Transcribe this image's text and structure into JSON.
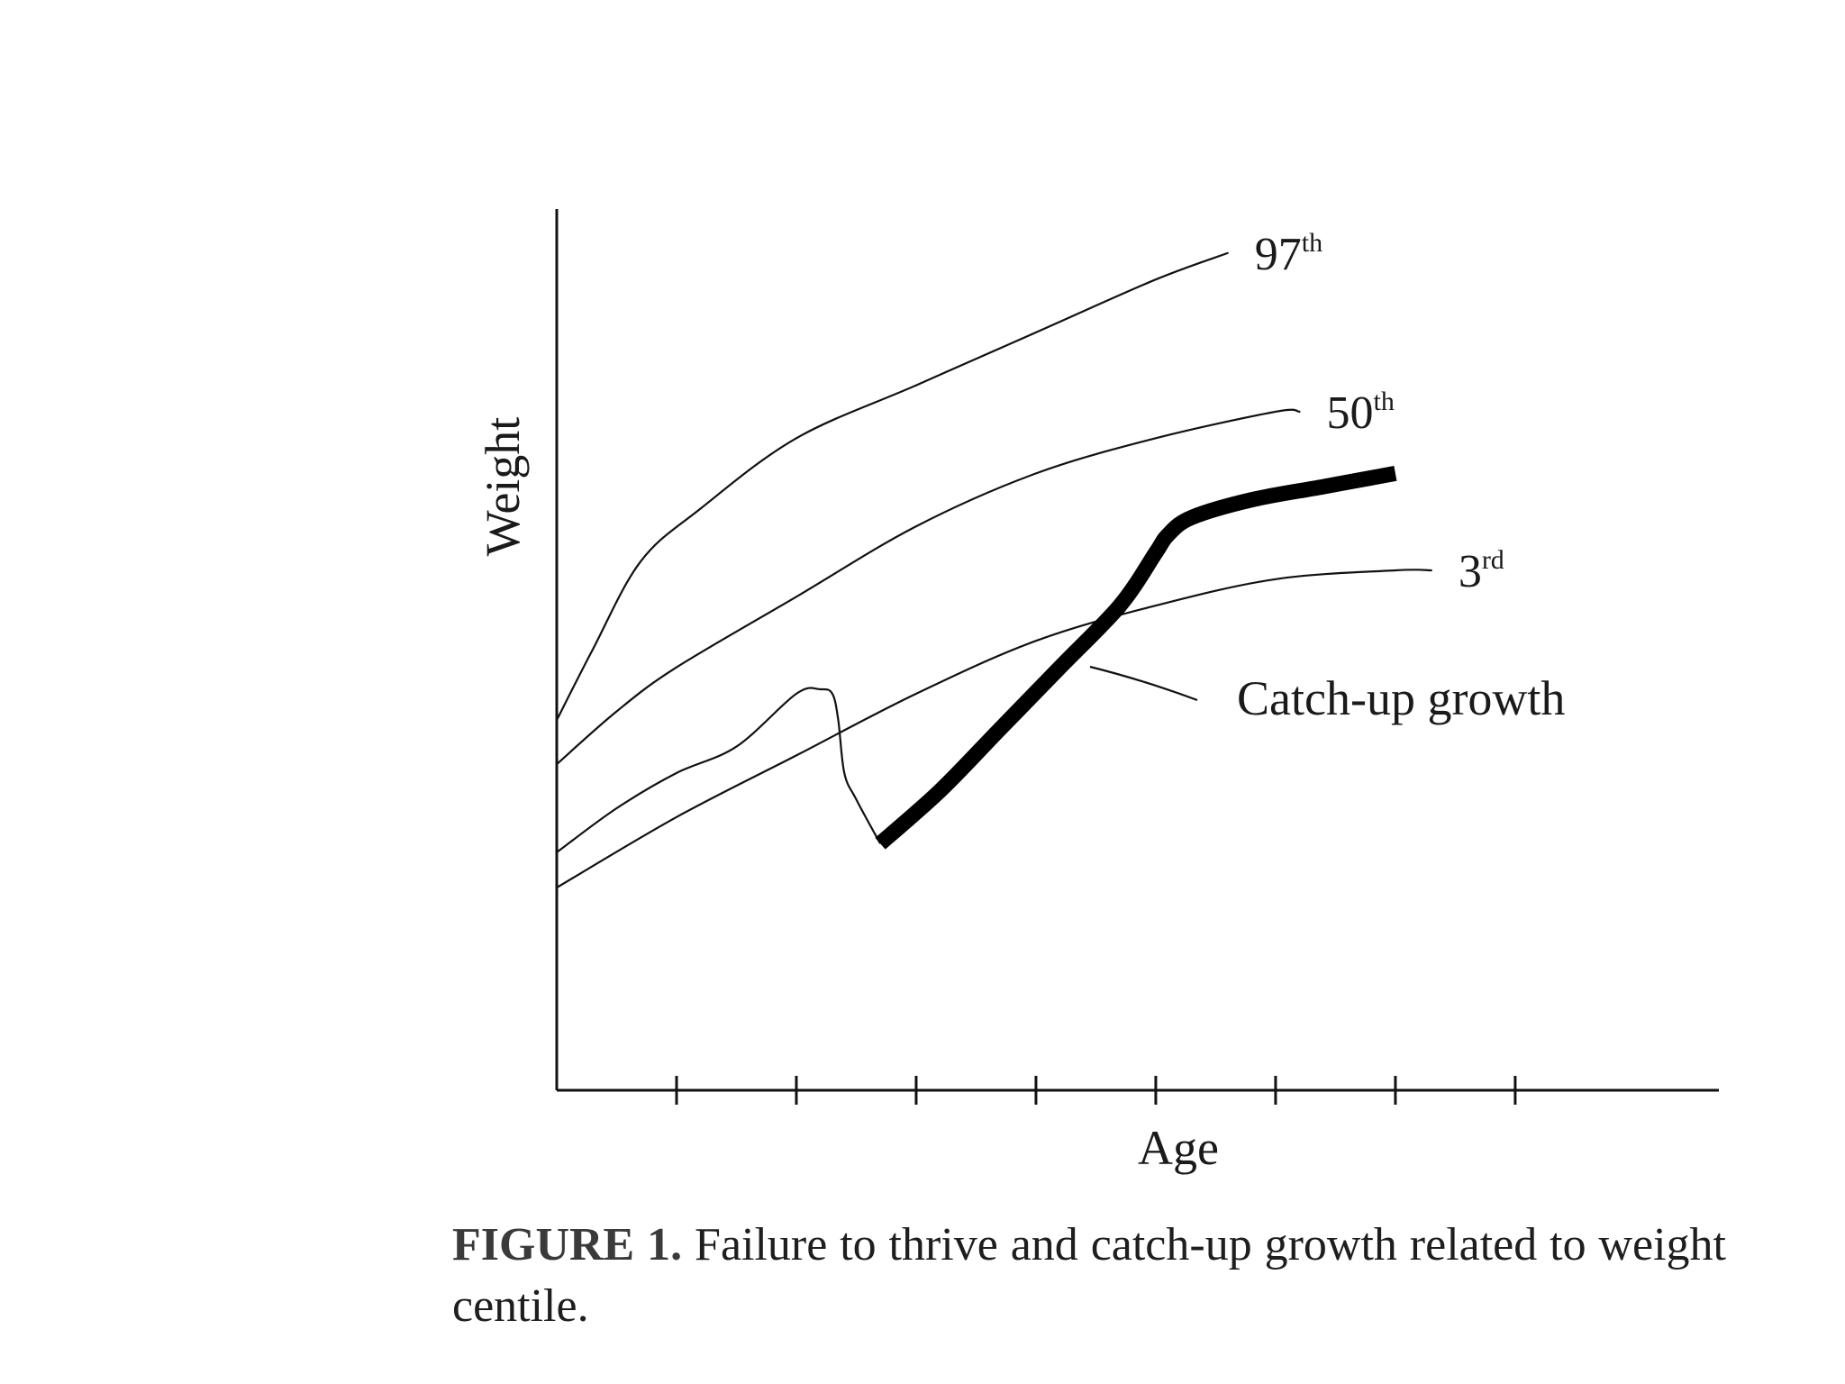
{
  "chart_data": {
    "type": "line",
    "xlabel": "Age",
    "ylabel": "Weight",
    "xlim": [
      0,
      9.7
    ],
    "ylim": [
      0,
      10
    ],
    "x_ticks": [
      1,
      2,
      3,
      4,
      5,
      6,
      7,
      8
    ],
    "series": [
      {
        "name": "97",
        "suffix": "th",
        "x": [
          0,
          0.3,
          0.7,
          1.2,
          2.0,
          3.0,
          4.0,
          5.0,
          5.6
        ],
        "y": [
          4.2,
          5.0,
          6.0,
          6.6,
          7.4,
          8.0,
          8.6,
          9.2,
          9.5
        ]
      },
      {
        "name": "50",
        "suffix": "th",
        "x": [
          0,
          0.5,
          1.0,
          2.0,
          3.0,
          4.0,
          5.0,
          6.0,
          6.2
        ],
        "y": [
          3.7,
          4.3,
          4.8,
          5.6,
          6.4,
          7.0,
          7.4,
          7.7,
          7.7
        ]
      },
      {
        "name": "3",
        "suffix": "rd",
        "x": [
          0,
          1.0,
          2.0,
          3.0,
          4.0,
          5.0,
          6.0,
          7.0,
          7.3
        ],
        "y": [
          2.3,
          3.1,
          3.8,
          4.5,
          5.1,
          5.5,
          5.8,
          5.9,
          5.9
        ]
      }
    ],
    "child_curve": {
      "x": [
        0,
        0.5,
        1.0,
        1.5,
        2.0,
        2.2,
        2.3,
        2.35,
        2.4,
        2.5,
        2.7
      ],
      "y": [
        2.7,
        3.2,
        3.6,
        3.9,
        4.5,
        4.55,
        4.5,
        4.2,
        3.6,
        3.3,
        2.8
      ]
    },
    "catch_up": {
      "x": [
        2.7,
        3.2,
        3.7,
        4.2,
        4.7,
        5.0,
        5.1,
        5.3,
        5.8,
        6.4,
        7.0
      ],
      "y": [
        2.8,
        3.4,
        4.1,
        4.8,
        5.5,
        6.1,
        6.3,
        6.5,
        6.7,
        6.85,
        7.0
      ]
    },
    "annotation": "Catch-up growth",
    "grid": false,
    "legend": "none"
  },
  "figure": {
    "caption_label": "FIGURE 1.",
    "caption_text": " Failure to thrive and catch-up growth related to weight centile."
  }
}
